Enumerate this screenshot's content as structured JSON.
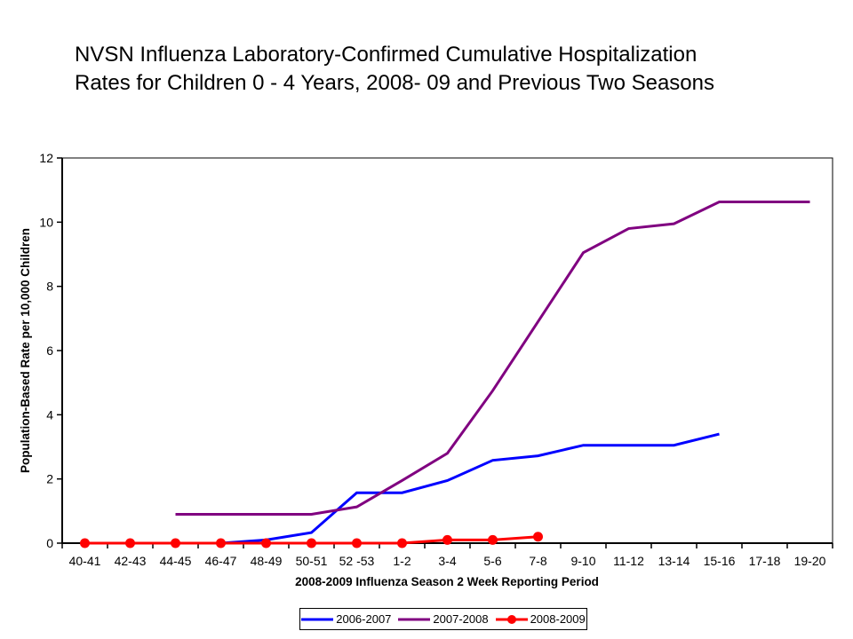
{
  "title": {
    "line1": "NVSN Influenza Laboratory-Confirmed Cumulative Hospitalization",
    "line2": "Rates for Children 0 - 4 Years, 2008- 09 and Previous Two Seasons"
  },
  "chart_data": {
    "type": "line",
    "title": "NVSN Influenza Laboratory-Confirmed Cumulative Hospitalization Rates for Children 0 - 4 Years, 2008- 09 and Previous Two Seasons",
    "xlabel": "2008-2009 Influenza Season 2 Week Reporting Period",
    "ylabel": "Population-Based Rate per 10,000 Children",
    "ylim": [
      0,
      12
    ],
    "yticks": [
      0,
      2,
      4,
      6,
      8,
      10,
      12
    ],
    "ytick_step": 2,
    "grid": false,
    "legend_position": "bottom-center",
    "plot_border_color": "#000000",
    "background_color": "#ffffff",
    "categories": [
      "40-41",
      "42-43",
      "44-45",
      "46-47",
      "48-49",
      "50-51",
      "52 -53",
      "1-2",
      "3-4",
      "5-6",
      "7-8",
      "9-10",
      "11-12",
      "13-14",
      "15-16",
      "17-18",
      "19-20"
    ],
    "series": [
      {
        "name": "2006-2007",
        "color": "#0000FF",
        "marker": "none",
        "values": [
          null,
          null,
          null,
          0,
          0.1,
          0.33,
          1.57,
          1.57,
          1.95,
          2.58,
          2.72,
          3.05,
          3.05,
          3.05,
          3.4,
          null,
          null
        ]
      },
      {
        "name": "2007-2008",
        "color": "#800080",
        "marker": "none",
        "values": [
          null,
          null,
          0.9,
          0.9,
          0.9,
          0.9,
          1.13,
          1.95,
          2.8,
          4.75,
          6.9,
          9.05,
          9.8,
          9.95,
          10.63,
          10.63,
          10.63
        ]
      },
      {
        "name": "2008-2009",
        "color": "#FF0000",
        "marker": "circle",
        "values": [
          0,
          0,
          0,
          0,
          0,
          0,
          0,
          0,
          0.1,
          0.1,
          0.2,
          null,
          null,
          null,
          null,
          null,
          null
        ]
      }
    ]
  }
}
